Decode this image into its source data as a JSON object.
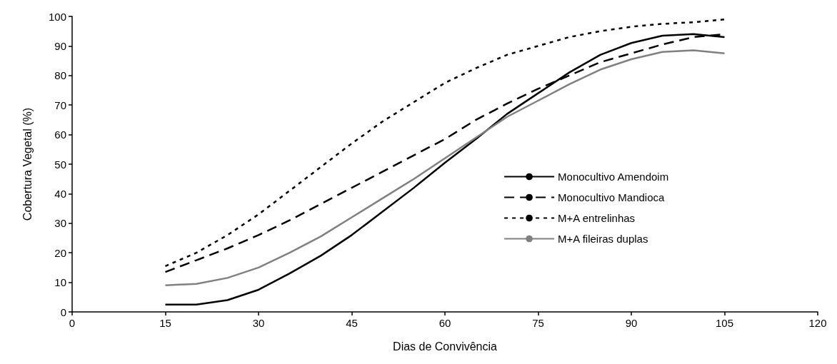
{
  "chart_data": {
    "type": "line",
    "xlabel": "Dias de Convivência",
    "ylabel": "Cobertura Vegetal (%)",
    "x": [
      15,
      20,
      25,
      30,
      35,
      40,
      45,
      50,
      55,
      60,
      65,
      70,
      75,
      80,
      85,
      90,
      95,
      100,
      105
    ],
    "xlim": [
      0,
      120
    ],
    "xticks": [
      0,
      15,
      30,
      45,
      60,
      75,
      90,
      105,
      120
    ],
    "ylim": [
      0,
      100
    ],
    "yticks": [
      0,
      10,
      20,
      30,
      40,
      50,
      60,
      70,
      80,
      90,
      100
    ],
    "grid": false,
    "legend": "right",
    "marker": "none",
    "series": [
      {
        "name": "Monocultivo Amendoim",
        "color": "#000000",
        "line_style": "solid",
        "values": [
          2.5,
          2.5,
          4,
          7.5,
          13,
          19,
          26,
          34,
          42,
          50.5,
          58.5,
          67,
          74,
          81,
          87,
          91,
          93.5,
          94,
          93
        ]
      },
      {
        "name": "Monocultivo Mandioca",
        "color": "#000000",
        "line_style": "dashed",
        "values": [
          13.5,
          17.5,
          21.5,
          26,
          31,
          36.5,
          42,
          47.5,
          53,
          58.5,
          65,
          70.5,
          75.5,
          80,
          84.5,
          87.5,
          90.5,
          93,
          94
        ]
      },
      {
        "name": "M+A entrelinhas",
        "color": "#000000",
        "line_style": "dotted",
        "values": [
          15.5,
          20,
          26,
          33,
          41,
          49,
          57,
          64.5,
          71,
          77.5,
          82.5,
          87,
          90,
          93,
          95,
          96.5,
          97.5,
          98,
          99
        ]
      },
      {
        "name": "M+A fileiras duplas",
        "color": "#808080",
        "line_style": "solid",
        "values": [
          9,
          9.5,
          11.5,
          15,
          20,
          25.5,
          32,
          38.5,
          45,
          52,
          59,
          66,
          71.5,
          77,
          82,
          85.5,
          88,
          88.5,
          87.5
        ]
      }
    ]
  }
}
